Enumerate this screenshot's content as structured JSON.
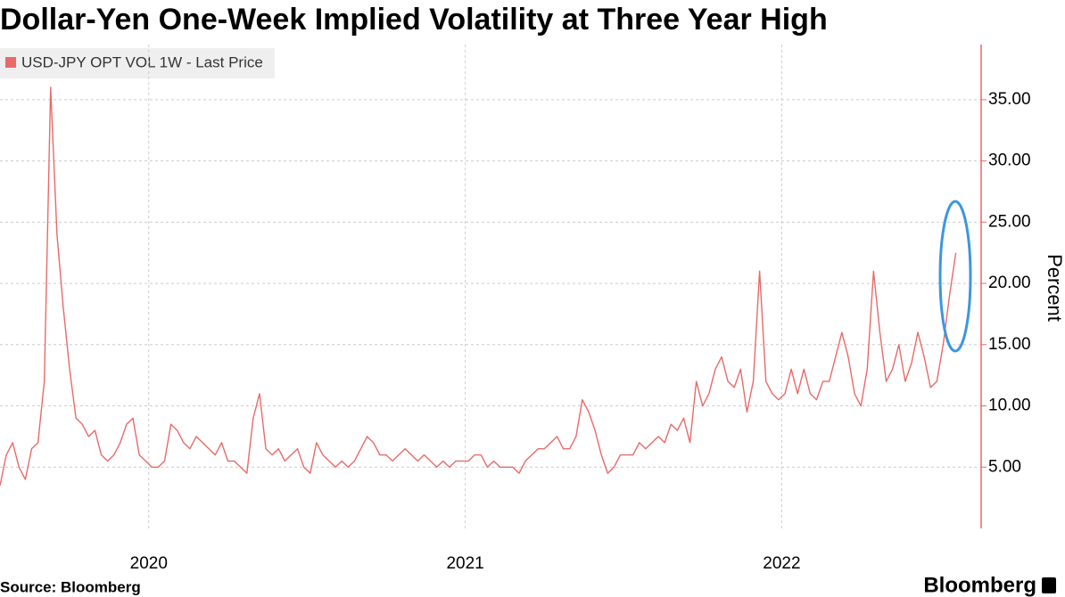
{
  "chart_data": {
    "type": "line",
    "title": "Dollar-Yen One-Week Implied Volatility at Three Year High",
    "y_label": "Percent",
    "source": "Source: Bloomberg",
    "brand": "Bloomberg",
    "legend_position": "upper left",
    "grid": true,
    "xlim": [
      2020.03,
      2023.13
    ],
    "xticks": [
      {
        "value": 2020.5,
        "label": "2020"
      },
      {
        "value": 2021.5,
        "label": "2021"
      },
      {
        "value": 2022.5,
        "label": "2022"
      }
    ],
    "ylim": [
      0,
      39.5
    ],
    "yticks": [
      {
        "value": 5,
        "label": "5.00"
      },
      {
        "value": 10,
        "label": "10.00"
      },
      {
        "value": 15,
        "label": "15.00"
      },
      {
        "value": 20,
        "label": "20.00"
      },
      {
        "value": 25,
        "label": "25.00"
      },
      {
        "value": 30,
        "label": "30.00"
      },
      {
        "value": 35,
        "label": "35.00"
      }
    ],
    "x": [
      2020.03,
      2020.05,
      2020.07,
      2020.09,
      2020.11,
      2020.13,
      2020.15,
      2020.17,
      2020.19,
      2020.21,
      2020.23,
      2020.25,
      2020.27,
      2020.29,
      2020.31,
      2020.33,
      2020.35,
      2020.37,
      2020.39,
      2020.41,
      2020.43,
      2020.45,
      2020.47,
      2020.49,
      2020.51,
      2020.53,
      2020.55,
      2020.57,
      2020.59,
      2020.61,
      2020.63,
      2020.65,
      2020.67,
      2020.69,
      2020.71,
      2020.73,
      2020.75,
      2020.77,
      2020.79,
      2020.81,
      2020.83,
      2020.85,
      2020.87,
      2020.89,
      2020.91,
      2020.93,
      2020.95,
      2020.97,
      2020.99,
      2021.01,
      2021.03,
      2021.05,
      2021.07,
      2021.09,
      2021.11,
      2021.13,
      2021.15,
      2021.17,
      2021.19,
      2021.21,
      2021.23,
      2021.25,
      2021.27,
      2021.29,
      2021.31,
      2021.33,
      2021.35,
      2021.37,
      2021.39,
      2021.41,
      2021.43,
      2021.45,
      2021.47,
      2021.49,
      2021.51,
      2021.53,
      2021.55,
      2021.57,
      2021.59,
      2021.61,
      2021.63,
      2021.65,
      2021.67,
      2021.69,
      2021.71,
      2021.73,
      2021.75,
      2021.77,
      2021.79,
      2021.81,
      2021.83,
      2021.85,
      2021.87,
      2021.89,
      2021.91,
      2021.93,
      2021.95,
      2021.97,
      2021.99,
      2022.01,
      2022.03,
      2022.05,
      2022.07,
      2022.09,
      2022.11,
      2022.13,
      2022.15,
      2022.17,
      2022.19,
      2022.21,
      2022.23,
      2022.25,
      2022.27,
      2022.29,
      2022.31,
      2022.33,
      2022.35,
      2022.37,
      2022.39,
      2022.41,
      2022.43,
      2022.45,
      2022.47,
      2022.49,
      2022.51,
      2022.53,
      2022.55,
      2022.57,
      2022.59,
      2022.61,
      2022.63,
      2022.65,
      2022.67,
      2022.69,
      2022.71,
      2022.73,
      2022.75,
      2022.77,
      2022.79,
      2022.81,
      2022.83,
      2022.85,
      2022.87,
      2022.89,
      2022.91,
      2022.93,
      2022.95,
      2022.97,
      2022.99,
      2023.01,
      2023.03,
      2023.05
    ],
    "series": [
      {
        "name": "USD-JPY OPT VOL 1W - Last Price",
        "color": "#e86a6a",
        "values": [
          3.5,
          6,
          7,
          5,
          4,
          6.5,
          7,
          12,
          36,
          24,
          18,
          13,
          9,
          8.5,
          7.5,
          8,
          6,
          5.5,
          6,
          7,
          8.5,
          9,
          6,
          5.5,
          5,
          5,
          5.5,
          8.5,
          8,
          7,
          6.5,
          7.5,
          7,
          6.5,
          6,
          7,
          5.5,
          5.5,
          5,
          4.5,
          9,
          11,
          6.5,
          6,
          6.5,
          5.5,
          6,
          6.5,
          5,
          4.5,
          7,
          6,
          5.5,
          5,
          5.5,
          5,
          5.5,
          6.5,
          7.5,
          7,
          6,
          6,
          5.5,
          6,
          6.5,
          6,
          5.5,
          6,
          5.5,
          5,
          5.5,
          5,
          5.5,
          5.5,
          5.5,
          6,
          6,
          5,
          5.5,
          5,
          5,
          5,
          4.5,
          5.5,
          6,
          6.5,
          6.5,
          7,
          7.5,
          6.5,
          6.5,
          7.5,
          10.5,
          9.5,
          8,
          6,
          4.5,
          5,
          6,
          6,
          6,
          7,
          6.5,
          7,
          7.5,
          7,
          8.5,
          8,
          9,
          7,
          12,
          10,
          11,
          13,
          14,
          12,
          11.5,
          13,
          9.5,
          12,
          21,
          12,
          11,
          10.5,
          11,
          13,
          11,
          13,
          11,
          10.5,
          12,
          12,
          14,
          16,
          14,
          11,
          10,
          13,
          21,
          16,
          12,
          13,
          15,
          12,
          13.5,
          16,
          14,
          11.5,
          12,
          15,
          19,
          22.5
        ]
      }
    ]
  }
}
